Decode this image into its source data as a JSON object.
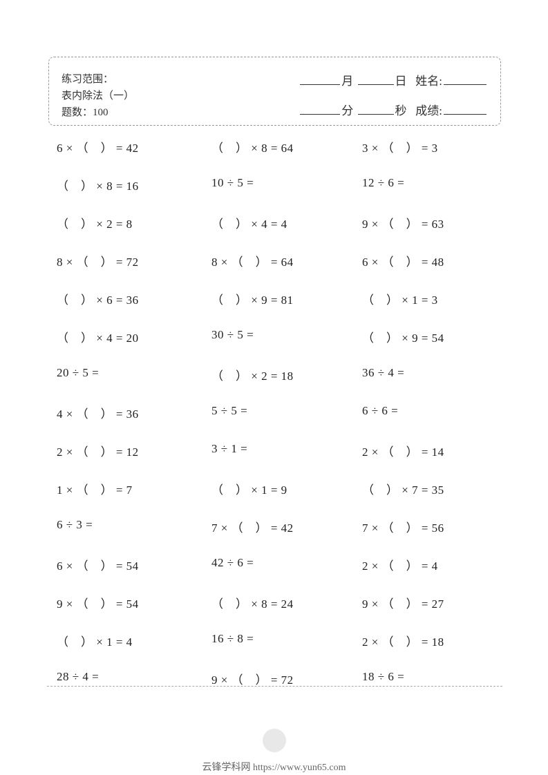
{
  "header": {
    "range_label": "练习范围：",
    "range_value": "表内除法（一）",
    "count_label": "题数：100",
    "month": "月",
    "day": "日",
    "name_label": "姓名:",
    "minute": "分",
    "second": "秒",
    "score_label": "成绩:"
  },
  "problems": {
    "rows": [
      [
        "6 × （　） = 42",
        "（　） × 8 = 64",
        "3 × （　） = 3"
      ],
      [
        "（　） × 8 = 16",
        "10 ÷ 5 =",
        "12 ÷ 6 ="
      ],
      [
        "（　） × 2 = 8",
        "（　） × 4 = 4",
        "9 × （　） = 63"
      ],
      [
        "8 × （　） = 72",
        "8 × （　） = 64",
        "6 × （　） = 48"
      ],
      [
        "（　） × 6 = 36",
        "（　） × 9 = 81",
        "（　） × 1 = 3"
      ],
      [
        "（　） × 4 = 20",
        "30 ÷ 5 =",
        "（　） × 9 = 54"
      ],
      [
        "20 ÷ 5 =",
        "（　） × 2 = 18",
        "36 ÷ 4 ="
      ],
      [
        "4 × （　） = 36",
        "5 ÷ 5 =",
        "6 ÷ 6 ="
      ],
      [
        "2 × （　） = 12",
        "3 ÷ 1 =",
        "2 × （　） = 14"
      ],
      [
        "1 × （　） = 7",
        "（　） × 1 = 9",
        "（　） × 7 = 35"
      ],
      [
        "6 ÷ 3 =",
        "7 × （　） = 42",
        "7 × （　） = 56"
      ],
      [
        "6 × （　） = 54",
        "42 ÷ 6 =",
        "2 × （　） = 4"
      ],
      [
        "9 × （　） = 54",
        "（　） × 8 = 24",
        "9 × （　） = 27"
      ],
      [
        "（　） × 1 = 4",
        "16 ÷ 8 =",
        "2 × （　） = 18"
      ],
      [
        "28 ÷ 4 =",
        "9 × （　） = 72",
        "18 ÷ 6 ="
      ]
    ],
    "font_size": 17,
    "text_color": "#222222"
  },
  "footer": {
    "text": "云锋学科网 https://www.yun65.com",
    "text_color": "#666666"
  },
  "colors": {
    "background": "#ffffff",
    "border_dash": "#999999",
    "text": "#333333"
  }
}
